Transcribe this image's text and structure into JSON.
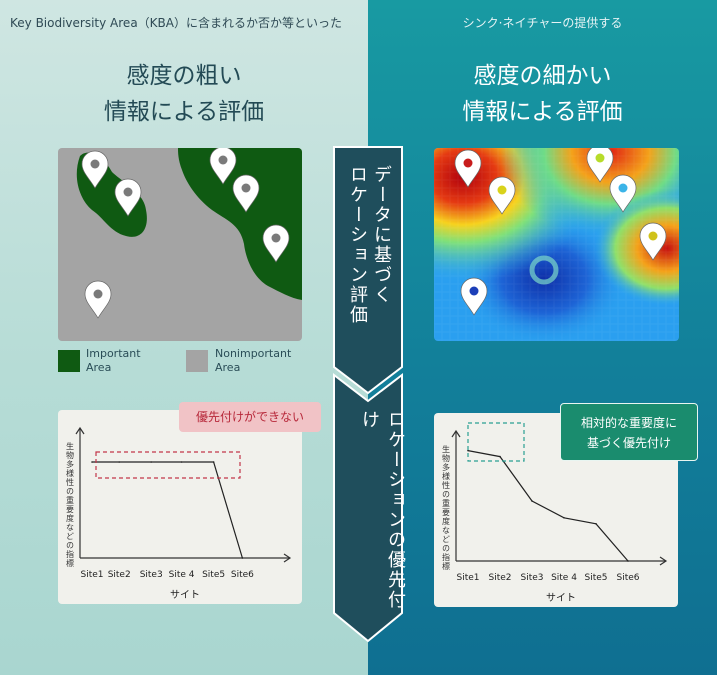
{
  "header": {
    "left_caption": "Key Biodiversity Area（KBA）に含まれるか否か等といった",
    "right_caption": "シンク·ネイチャーの提供する"
  },
  "left": {
    "title_line1": "感度の粗い",
    "title_line2": "情報による評価",
    "legend": {
      "important_line1": "Important",
      "important_line2": "Area",
      "nonimportant_line1": "Nonimportant",
      "nonimportant_line2": "Area"
    },
    "tag": "優先付けができない",
    "colors": {
      "important": "#0f5a12",
      "nonimportant": "#a4a4a4",
      "tag_bg": "#f1c3c6",
      "tag_text": "#b7283a"
    }
  },
  "right": {
    "title_line1": "感度の細かい",
    "title_line2": "情報による評価",
    "tag_line1": "相対的な重要度に",
    "tag_line2": "基づく優先付け",
    "colors": {
      "tag_bg": "#1a8c6e"
    }
  },
  "center": {
    "arrow1_text": "データに基づく\nロケーション評価",
    "arrow1_col1": "データに基づく",
    "arrow1_col2": "ロケーション評価",
    "arrow2_text": "ロケーションの優先付け",
    "colors": {
      "arrow": "#1f4e5c"
    }
  },
  "chart_data": [
    {
      "type": "line",
      "categories": [
        "Site1",
        "Site2",
        "Site3",
        "Site 4",
        "Site5",
        "Site6"
      ],
      "x": [
        1,
        1.85,
        2.85,
        3.8,
        4.8,
        5.7
      ],
      "values": [
        0.8,
        0.8,
        0.8,
        0.8,
        0.8,
        0.0
      ],
      "xlabel": "サイト",
      "ylabel": "生物多様性の重要度などの指標",
      "ylim": [
        0,
        1
      ],
      "grid": false
    },
    {
      "type": "line",
      "categories": [
        "Site1",
        "Site2",
        "Site3",
        "Site 4",
        "Site5",
        "Site6"
      ],
      "x": [
        1,
        2,
        3,
        4,
        5,
        6
      ],
      "values": [
        0.92,
        0.87,
        0.5,
        0.36,
        0.31,
        0.0
      ],
      "xlabel": "サイト",
      "ylabel": "生物多様性の重要度などの指標",
      "ylim": [
        0,
        1
      ],
      "grid": false
    }
  ]
}
